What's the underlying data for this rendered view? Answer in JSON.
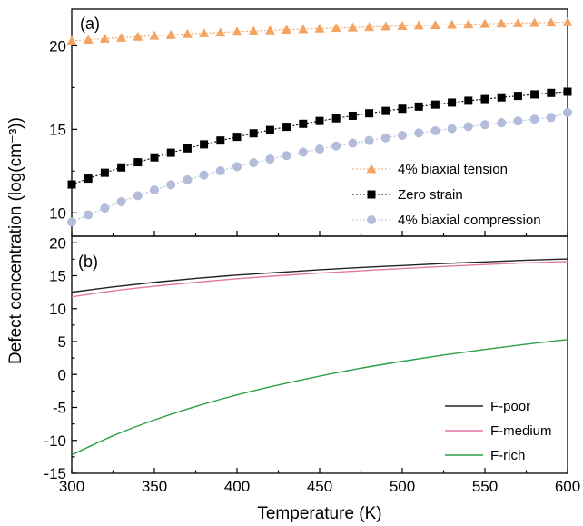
{
  "chart_data": [
    {
      "type": "scatter",
      "panel_label": "(a)",
      "x": [
        300,
        310,
        320,
        330,
        340,
        350,
        360,
        370,
        380,
        390,
        400,
        410,
        420,
        430,
        440,
        450,
        460,
        470,
        480,
        490,
        500,
        510,
        520,
        530,
        540,
        550,
        560,
        570,
        580,
        590,
        600
      ],
      "series": [
        {
          "name": "4% biaxial tension",
          "color": "#f4a460",
          "marker": "triangle",
          "values": [
            20.3,
            20.37,
            20.43,
            20.49,
            20.55,
            20.61,
            20.66,
            20.71,
            20.76,
            20.8,
            20.85,
            20.89,
            20.93,
            20.97,
            21.0,
            21.04,
            21.07,
            21.1,
            21.13,
            21.16,
            21.19,
            21.22,
            21.24,
            21.27,
            21.29,
            21.32,
            21.34,
            21.36,
            21.38,
            21.4,
            21.42
          ]
        },
        {
          "name": "Zero strain",
          "color": "#000000",
          "marker": "square",
          "values": [
            11.7,
            12.05,
            12.4,
            12.72,
            13.03,
            13.32,
            13.6,
            13.86,
            14.1,
            14.33,
            14.55,
            14.76,
            14.96,
            15.15,
            15.33,
            15.5,
            15.66,
            15.81,
            15.96,
            16.1,
            16.23,
            16.36,
            16.48,
            16.6,
            16.71,
            16.81,
            16.91,
            17.0,
            17.09,
            17.18,
            17.25
          ]
        },
        {
          "name": "4% biaxial compression",
          "color": "#b4bcdc",
          "marker": "circle",
          "values": [
            9.45,
            9.88,
            10.28,
            10.67,
            11.03,
            11.37,
            11.68,
            11.98,
            12.26,
            12.52,
            12.77,
            13.0,
            13.22,
            13.43,
            13.63,
            13.82,
            14.0,
            14.17,
            14.33,
            14.49,
            14.64,
            14.78,
            14.91,
            15.04,
            15.16,
            15.28,
            15.39,
            15.5,
            15.61,
            15.71,
            16.0
          ]
        }
      ],
      "ylim": [
        8.6,
        22.2
      ],
      "yticks": [
        "10",
        "15",
        "20"
      ],
      "legend_position": "bottom-right"
    },
    {
      "type": "line",
      "panel_label": "(b)",
      "x": [
        300,
        325,
        350,
        375,
        400,
        425,
        450,
        475,
        500,
        525,
        550,
        575,
        600
      ],
      "series": [
        {
          "name": "F-poor",
          "color": "#222222",
          "values": [
            12.5,
            13.3,
            14.0,
            14.6,
            15.1,
            15.5,
            15.9,
            16.25,
            16.55,
            16.85,
            17.1,
            17.35,
            17.55
          ]
        },
        {
          "name": "F-medium",
          "color": "#e377a8",
          "values": [
            11.8,
            12.7,
            13.4,
            14.0,
            14.55,
            15.0,
            15.4,
            15.75,
            16.1,
            16.4,
            16.7,
            16.95,
            17.15
          ]
        },
        {
          "name": "F-rich",
          "color": "#2ca048",
          "values": [
            -12.2,
            -9.3,
            -6.9,
            -4.85,
            -3.1,
            -1.6,
            -0.25,
            0.95,
            2.0,
            2.95,
            3.8,
            4.6,
            5.3
          ]
        }
      ],
      "ylim": [
        -15,
        21
      ],
      "yticks": [
        "-15",
        "-10",
        "-5",
        "0",
        "5",
        "10",
        "15",
        "20"
      ],
      "legend_position": "bottom-right"
    }
  ],
  "axes": {
    "xlim": [
      300,
      600
    ],
    "xticks": [
      "300",
      "350",
      "400",
      "450",
      "500",
      "550",
      "600"
    ],
    "xlabel": "Temperature (K)",
    "ylabel": "Defect concentration (log(cm⁻³))"
  }
}
